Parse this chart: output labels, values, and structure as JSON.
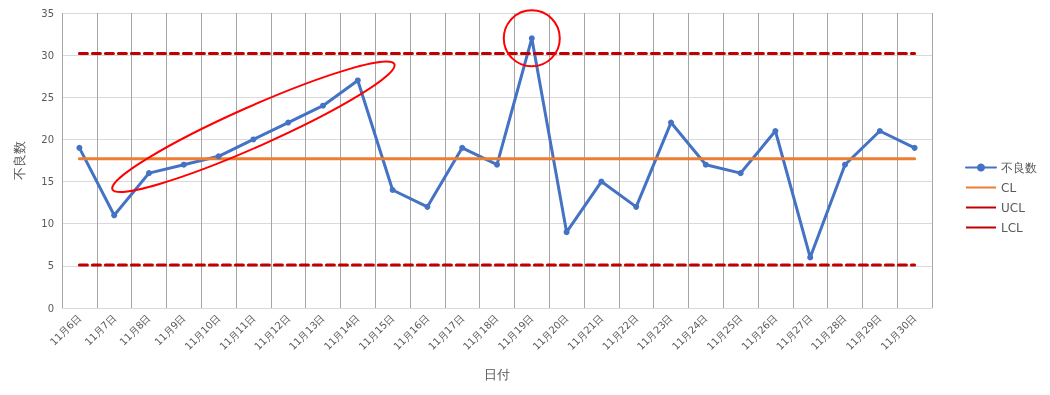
{
  "chart_data": {
    "type": "line",
    "xlabel": "日付",
    "ylabel": "不良数",
    "categories": [
      "11月6日",
      "11月7日",
      "11月8日",
      "11月9日",
      "11月10日",
      "11月11日",
      "11月12日",
      "11月13日",
      "11月14日",
      "11月15日",
      "11月16日",
      "11月17日",
      "11月18日",
      "11月19日",
      "11月20日",
      "11月21日",
      "11月22日",
      "11月23日",
      "11月24日",
      "11月25日",
      "11月26日",
      "11月27日",
      "11月28日",
      "11月29日",
      "11月30日"
    ],
    "series": [
      {
        "name": "不良数",
        "color": "#4472c4",
        "marker": "circle",
        "line_style": "solid",
        "values": [
          19,
          11,
          16,
          17,
          18,
          20,
          22,
          24,
          27,
          14,
          12,
          19,
          17,
          32,
          9,
          15,
          12,
          22,
          17,
          16,
          21,
          6,
          17,
          21,
          19
        ]
      },
      {
        "name": "CL",
        "color": "#ed7d31",
        "marker": "none",
        "line_style": "solid",
        "values": [
          17.7,
          17.7,
          17.7,
          17.7,
          17.7,
          17.7,
          17.7,
          17.7,
          17.7,
          17.7,
          17.7,
          17.7,
          17.7,
          17.7,
          17.7,
          17.7,
          17.7,
          17.7,
          17.7,
          17.7,
          17.7,
          17.7,
          17.7,
          17.7,
          17.7
        ]
      },
      {
        "name": "UCL",
        "color": "#c00000",
        "marker": "none",
        "line_style": "dashed",
        "values": [
          30.2,
          30.2,
          30.2,
          30.2,
          30.2,
          30.2,
          30.2,
          30.2,
          30.2,
          30.2,
          30.2,
          30.2,
          30.2,
          30.2,
          30.2,
          30.2,
          30.2,
          30.2,
          30.2,
          30.2,
          30.2,
          30.2,
          30.2,
          30.2,
          30.2
        ]
      },
      {
        "name": "LCL",
        "color": "#c00000",
        "marker": "none",
        "line_style": "dashed",
        "values": [
          5.1,
          5.1,
          5.1,
          5.1,
          5.1,
          5.1,
          5.1,
          5.1,
          5.1,
          5.1,
          5.1,
          5.1,
          5.1,
          5.1,
          5.1,
          5.1,
          5.1,
          5.1,
          5.1,
          5.1,
          5.1,
          5.1,
          5.1,
          5.1,
          5.1
        ]
      }
    ],
    "ylim": [
      0,
      35
    ],
    "yticks": [
      0,
      5,
      10,
      15,
      20,
      25,
      30,
      35
    ],
    "grid": true,
    "legend": "right"
  }
}
